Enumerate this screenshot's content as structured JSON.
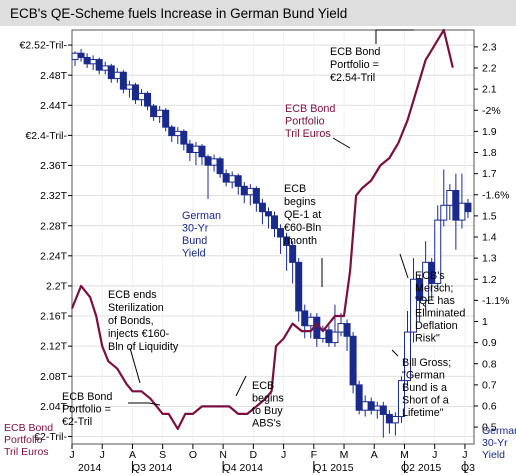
{
  "chart_data": {
    "type": "line",
    "title": "ECB's QE-Scheme fuels Increase in German Bund Yield",
    "left_axis": {
      "ticks": [
        {
          "value": 2.52,
          "label": "€2.52-Tril-"
        },
        {
          "value": 2.48,
          "label": "2.48T"
        },
        {
          "value": 2.44,
          "label": "2.44T"
        },
        {
          "value": 2.4,
          "label": "€2.4-Tril-"
        },
        {
          "value": 2.36,
          "label": "2.36T"
        },
        {
          "value": 2.32,
          "label": "2.32T"
        },
        {
          "value": 2.28,
          "label": "2.28T"
        },
        {
          "value": 2.24,
          "label": "2.24T"
        },
        {
          "value": 2.2,
          "label": "2.2T"
        },
        {
          "value": 2.16,
          "label": "2.16T"
        },
        {
          "value": 2.12,
          "label": "2.12T"
        },
        {
          "value": 2.08,
          "label": "2.08T"
        },
        {
          "value": 2.04,
          "label": "2.04T"
        },
        {
          "value": 2.0,
          "label": "€2-Tril-"
        }
      ],
      "range": [
        1.99,
        2.54
      ],
      "label_lines": [
        "ECB Bond",
        "Portfolio",
        "Tril Euros"
      ]
    },
    "right_axis": {
      "ticks": [
        {
          "value": 2.3,
          "label": "2.3"
        },
        {
          "value": 2.2,
          "label": "2.2"
        },
        {
          "value": 2.1,
          "label": "2.1"
        },
        {
          "value": 2.0,
          "label": "-2%"
        },
        {
          "value": 1.9,
          "label": "1.9"
        },
        {
          "value": 1.8,
          "label": "1.8"
        },
        {
          "value": 1.7,
          "label": "1.7"
        },
        {
          "value": 1.6,
          "label": "-1.6%"
        },
        {
          "value": 1.5,
          "label": "1.5"
        },
        {
          "value": 1.4,
          "label": "1.4"
        },
        {
          "value": 1.3,
          "label": "1.3"
        },
        {
          "value": 1.2,
          "label": "1.2"
        },
        {
          "value": 1.1,
          "label": "-1.1%"
        },
        {
          "value": 1.0,
          "label": "1"
        },
        {
          "value": 0.9,
          "label": "0.9"
        },
        {
          "value": 0.8,
          "label": "0.8"
        },
        {
          "value": 0.7,
          "label": "0.7"
        },
        {
          "value": 0.6,
          "label": "0.6"
        },
        {
          "value": 0.5,
          "label": "0.5"
        }
      ],
      "range": [
        0.42,
        2.38
      ],
      "label_lines": [
        "German",
        "30-Yr",
        "Yield"
      ]
    },
    "x_axis": {
      "months": [
        "J",
        "J",
        "A",
        "S",
        "O",
        "N",
        "D",
        "J",
        "F",
        "M",
        "A",
        "M",
        "J",
        "J"
      ],
      "quarters": [
        "2014",
        "Q3 2014",
        "Q4 2014",
        "Q1 2015",
        "Q2 2015",
        "Q3"
      ],
      "range": [
        0,
        13.3
      ]
    },
    "series": [
      {
        "name": "ECB Bond Portfolio Tril Euros",
        "axis": "left",
        "points": [
          [
            0,
            2.17
          ],
          [
            0.3,
            2.2
          ],
          [
            0.6,
            2.185
          ],
          [
            0.8,
            2.16
          ],
          [
            1.0,
            2.12
          ],
          [
            1.2,
            2.1
          ],
          [
            1.5,
            2.09
          ],
          [
            1.8,
            2.07
          ],
          [
            2.0,
            2.06
          ],
          [
            2.3,
            2.06
          ],
          [
            2.6,
            2.05
          ],
          [
            3.0,
            2.03
          ],
          [
            3.2,
            2.03
          ],
          [
            3.5,
            2.01
          ],
          [
            3.75,
            2.03
          ],
          [
            4.0,
            2.03
          ],
          [
            4.3,
            2.04
          ],
          [
            4.6,
            2.04
          ],
          [
            4.9,
            2.04
          ],
          [
            5.2,
            2.04
          ],
          [
            5.5,
            2.03
          ],
          [
            5.8,
            2.03
          ],
          [
            6.1,
            2.04
          ],
          [
            6.4,
            2.05
          ],
          [
            6.6,
            2.06
          ],
          [
            6.75,
            2.12
          ],
          [
            7.0,
            2.13
          ],
          [
            7.3,
            2.15
          ],
          [
            7.6,
            2.14
          ],
          [
            7.9,
            2.14
          ],
          [
            8.1,
            2.15
          ],
          [
            8.3,
            2.14
          ],
          [
            8.5,
            2.15
          ],
          [
            8.7,
            2.16
          ],
          [
            9.0,
            2.16
          ],
          [
            9.2,
            2.22
          ],
          [
            9.4,
            2.32
          ],
          [
            9.6,
            2.33
          ],
          [
            9.9,
            2.34
          ],
          [
            10.2,
            2.36
          ],
          [
            10.5,
            2.37
          ],
          [
            10.8,
            2.39
          ],
          [
            11.1,
            2.42
          ],
          [
            11.4,
            2.46
          ],
          [
            11.7,
            2.5
          ],
          [
            12.0,
            2.52
          ],
          [
            12.3,
            2.54
          ],
          [
            12.45,
            2.515
          ],
          [
            12.6,
            2.49
          ]
        ]
      },
      {
        "name": "German 30-Yr Bund Yield",
        "axis": "right",
        "candles": [
          [
            0.1,
            2.24,
            2.27,
            2.21,
            2.28
          ],
          [
            0.3,
            2.27,
            2.25,
            2.23,
            2.29
          ],
          [
            0.5,
            2.25,
            2.22,
            2.2,
            2.27
          ],
          [
            0.7,
            2.22,
            2.24,
            2.19,
            2.26
          ],
          [
            0.9,
            2.24,
            2.19,
            2.17,
            2.25
          ],
          [
            1.1,
            2.19,
            2.21,
            2.17,
            2.23
          ],
          [
            1.3,
            2.21,
            2.15,
            2.13,
            2.22
          ],
          [
            1.5,
            2.15,
            2.18,
            2.13,
            2.2
          ],
          [
            1.7,
            2.18,
            2.1,
            2.08,
            2.19
          ],
          [
            1.9,
            2.1,
            2.12,
            2.06,
            2.14
          ],
          [
            2.1,
            2.12,
            2.05,
            2.03,
            2.13
          ],
          [
            2.3,
            2.05,
            2.08,
            2.02,
            2.1
          ],
          [
            2.5,
            2.08,
            2.02,
            2.0,
            2.09
          ],
          [
            2.7,
            2.02,
            1.97,
            1.95,
            2.03
          ],
          [
            2.9,
            1.97,
            2.0,
            1.94,
            2.02
          ],
          [
            3.1,
            2.0,
            1.92,
            1.9,
            2.01
          ],
          [
            3.3,
            1.92,
            1.88,
            1.85,
            1.93
          ],
          [
            3.5,
            1.88,
            1.9,
            1.84,
            1.92
          ],
          [
            3.7,
            1.9,
            1.84,
            1.81,
            1.91
          ],
          [
            3.9,
            1.84,
            1.8,
            1.76,
            1.86
          ],
          [
            4.1,
            1.8,
            1.83,
            1.74,
            1.85
          ],
          [
            4.3,
            1.83,
            1.78,
            1.74,
            1.84
          ],
          [
            4.5,
            1.78,
            1.74,
            1.58,
            1.79
          ],
          [
            4.7,
            1.74,
            1.77,
            1.71,
            1.79
          ],
          [
            4.9,
            1.77,
            1.7,
            1.68,
            1.78
          ],
          [
            5.1,
            1.7,
            1.66,
            1.64,
            1.72
          ],
          [
            5.3,
            1.66,
            1.69,
            1.63,
            1.71
          ],
          [
            5.5,
            1.69,
            1.64,
            1.6,
            1.7
          ],
          [
            5.7,
            1.64,
            1.6,
            1.56,
            1.66
          ],
          [
            5.9,
            1.6,
            1.63,
            1.55,
            1.65
          ],
          [
            6.1,
            1.63,
            1.56,
            1.52,
            1.64
          ],
          [
            6.3,
            1.56,
            1.52,
            1.46,
            1.58
          ],
          [
            6.5,
            1.52,
            1.5,
            1.44,
            1.54
          ],
          [
            6.7,
            1.5,
            1.44,
            1.4,
            1.52
          ],
          [
            6.9,
            1.44,
            1.4,
            1.32,
            1.46
          ],
          [
            7.1,
            1.4,
            1.36,
            1.24,
            1.42
          ],
          [
            7.3,
            1.36,
            1.28,
            1.18,
            1.38
          ],
          [
            7.5,
            1.28,
            1.05,
            1.0,
            1.3
          ],
          [
            7.7,
            1.05,
            0.98,
            0.92,
            1.08
          ],
          [
            7.9,
            0.98,
            1.02,
            0.92,
            1.04
          ],
          [
            8.1,
            1.02,
            0.92,
            0.88,
            1.04
          ],
          [
            8.3,
            0.92,
            0.96,
            0.9,
            0.98
          ],
          [
            8.5,
            0.96,
            0.9,
            0.88,
            0.98
          ],
          [
            8.7,
            0.9,
            0.95,
            0.88,
            1.08
          ],
          [
            8.9,
            0.95,
            0.99,
            0.93,
            1.04
          ],
          [
            9.1,
            0.99,
            0.93,
            0.86,
            1.01
          ],
          [
            9.3,
            0.93,
            0.7,
            0.66,
            0.95
          ],
          [
            9.5,
            0.7,
            0.58,
            0.56,
            0.72
          ],
          [
            9.7,
            0.58,
            0.62,
            0.55,
            0.65
          ],
          [
            9.9,
            0.62,
            0.58,
            0.56,
            0.64
          ],
          [
            10.1,
            0.58,
            0.6,
            0.54,
            0.62
          ],
          [
            10.3,
            0.6,
            0.56,
            0.45,
            0.62
          ],
          [
            10.5,
            0.56,
            0.52,
            0.47,
            0.58
          ],
          [
            10.7,
            0.52,
            0.55,
            0.46,
            0.57
          ],
          [
            10.9,
            0.55,
            0.72,
            0.52,
            0.74
          ],
          [
            11.1,
            0.72,
            0.95,
            0.7,
            1.05
          ],
          [
            11.3,
            0.95,
            1.2,
            0.9,
            1.3
          ],
          [
            11.5,
            1.2,
            1.1,
            1.0,
            1.22
          ],
          [
            11.7,
            1.1,
            1.28,
            1.05,
            1.38
          ],
          [
            11.9,
            1.28,
            1.18,
            1.1,
            1.3
          ],
          [
            12.1,
            1.18,
            1.48,
            1.15,
            1.55
          ],
          [
            12.3,
            1.48,
            1.55,
            1.45,
            1.72
          ],
          [
            12.5,
            1.55,
            1.62,
            1.48,
            1.65
          ],
          [
            12.7,
            1.62,
            1.48,
            1.34,
            1.7
          ],
          [
            12.9,
            1.48,
            1.56,
            1.44,
            1.7
          ],
          [
            13.1,
            1.56,
            1.52,
            1.49,
            1.58
          ]
        ]
      }
    ],
    "annotations": [
      {
        "id": "ecb-portfolio-peak",
        "lines": [
          "ECB Bond",
          "Portfolio =",
          "€2.54-Tril"
        ],
        "color": "#000000"
      },
      {
        "id": "ecb-portfolio-series-label",
        "lines": [
          "ECB Bond",
          "Portfolio",
          "Tril Euros"
        ],
        "color": "#7a1040"
      },
      {
        "id": "bund-series-label",
        "lines": [
          "German",
          "30-Yr",
          "Bund",
          "Yield"
        ],
        "color": "#1a2a8c"
      },
      {
        "id": "ecb-qe1",
        "lines": [
          "ECB",
          "begins",
          "QE-1 at",
          "€60-Bln",
          "/month"
        ],
        "color": "#000000"
      },
      {
        "id": "ecb-sterilization",
        "lines": [
          "ECB ends",
          "Sterilization",
          "of Bonds,",
          "injects €160-",
          "Bln of Liquidity"
        ],
        "color": "#000000"
      },
      {
        "id": "ecb-portfolio-2t",
        "lines": [
          "ECB Bond",
          "Portfolio =",
          "€2-Tril"
        ],
        "color": "#000000"
      },
      {
        "id": "ecb-abs",
        "lines": [
          "ECB",
          "begins",
          "to Buy",
          "ABS's"
        ],
        "color": "#000000"
      },
      {
        "id": "mersch",
        "lines": [
          "ECB's",
          "Mersch;",
          "\"QE has",
          "Eliminated",
          "Deflation",
          "Risk\""
        ],
        "color": "#000000"
      },
      {
        "id": "gross",
        "lines": [
          "Bill Gross;",
          "\"German",
          "Bund is a",
          "Short of a",
          "Lifetime\""
        ],
        "color": "#000000"
      }
    ],
    "colors": {
      "portfolio_line": "#7a1040",
      "candle_body": "#1a2a8c",
      "grid": "#d7d7d7",
      "title_bg": "#dedede"
    }
  }
}
